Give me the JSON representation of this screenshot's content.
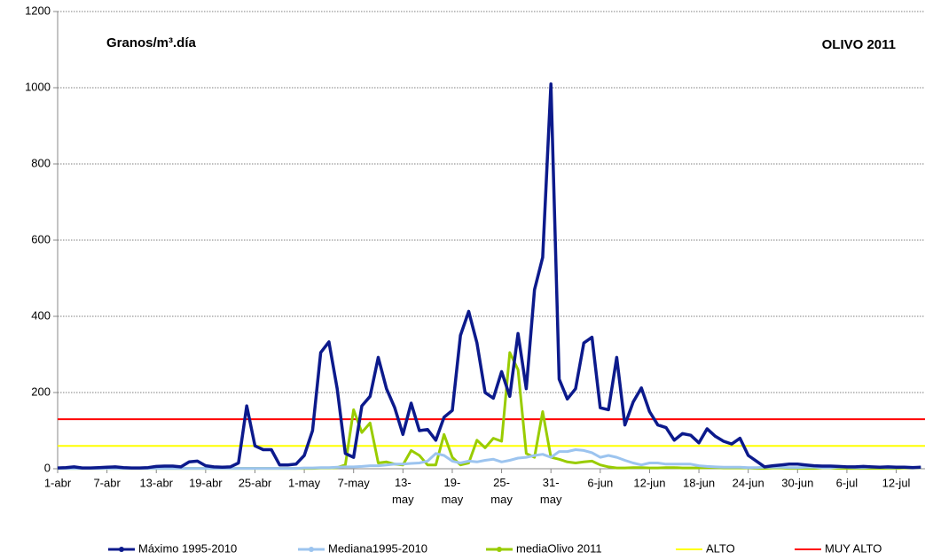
{
  "chart_data": {
    "type": "line",
    "annotations": [
      "Granos/m³.día",
      "OLIVO 2011"
    ],
    "categories": [
      "1-abr",
      null,
      null,
      null,
      null,
      null,
      "7-abr",
      null,
      null,
      null,
      null,
      null,
      "13-abr",
      null,
      null,
      null,
      null,
      null,
      "19-abr",
      null,
      null,
      null,
      null,
      null,
      "25-abr",
      null,
      null,
      null,
      null,
      null,
      "1-may",
      null,
      null,
      null,
      null,
      null,
      "7-may",
      null,
      null,
      null,
      null,
      null,
      "13-may",
      null,
      null,
      null,
      null,
      null,
      "19-may",
      null,
      null,
      null,
      null,
      null,
      "25-may",
      null,
      null,
      null,
      null,
      null,
      "31-may",
      null,
      null,
      null,
      null,
      null,
      "6-jun",
      null,
      null,
      null,
      null,
      null,
      "12-jun",
      null,
      null,
      null,
      null,
      null,
      "18-jun",
      null,
      null,
      null,
      null,
      null,
      "24-jun",
      null,
      null,
      null,
      null,
      null,
      "30-jun",
      null,
      null,
      null,
      null,
      null,
      "6-jul",
      null,
      null,
      null,
      null,
      null,
      "12-jul",
      null,
      null,
      null
    ],
    "series": [
      {
        "name": "Máximo 1995-2010",
        "color": "#0c1a8c",
        "values": [
          2,
          3,
          5,
          2,
          2,
          3,
          4,
          5,
          3,
          2,
          2,
          3,
          6,
          7,
          7,
          5,
          18,
          20,
          8,
          5,
          4,
          5,
          15,
          165,
          60,
          50,
          50,
          10,
          10,
          12,
          35,
          100,
          305,
          333,
          210,
          40,
          30,
          165,
          190,
          292,
          210,
          160,
          90,
          172,
          100,
          103,
          75,
          135,
          153,
          350,
          413,
          330,
          200,
          185,
          255,
          190,
          355,
          210,
          470,
          555,
          1010,
          235,
          183,
          210,
          330,
          345,
          160,
          155,
          292,
          115,
          175,
          212,
          150,
          115,
          108,
          75,
          92,
          88,
          68,
          105,
          85,
          72,
          65,
          80,
          35,
          20,
          5,
          8,
          10,
          12,
          12,
          10,
          8,
          7,
          7,
          6,
          5,
          5,
          6,
          5,
          4,
          5,
          4,
          4,
          3,
          4
        ]
      },
      {
        "name": "Mediana1995-2010",
        "color": "#9cc4ef",
        "values": [
          1,
          1,
          1,
          1,
          1,
          1,
          1,
          1,
          1,
          1,
          1,
          1,
          1,
          1,
          1,
          1,
          1,
          1,
          1,
          1,
          1,
          1,
          1,
          1,
          1,
          1,
          1,
          1,
          1,
          1,
          2,
          2,
          3,
          3,
          4,
          5,
          5,
          6,
          8,
          8,
          10,
          12,
          12,
          14,
          15,
          20,
          40,
          35,
          20,
          15,
          20,
          18,
          22,
          25,
          18,
          22,
          28,
          30,
          35,
          38,
          30,
          45,
          45,
          50,
          48,
          42,
          30,
          35,
          30,
          22,
          15,
          10,
          15,
          15,
          12,
          12,
          12,
          12,
          8,
          6,
          5,
          4,
          4,
          4,
          3,
          3,
          4,
          4,
          4,
          3,
          3,
          4,
          4,
          3,
          3,
          4,
          4,
          3,
          3,
          4,
          4,
          3,
          3,
          4,
          4,
          3
        ]
      },
      {
        "name": "mediaOlivo 2011",
        "color": "#99cc00",
        "values": [
          1,
          1,
          1,
          1,
          1,
          1,
          1,
          1,
          1,
          1,
          1,
          1,
          1,
          1,
          1,
          1,
          1,
          1,
          1,
          1,
          1,
          1,
          1,
          1,
          1,
          1,
          1,
          1,
          1,
          1,
          1,
          1,
          2,
          2,
          3,
          10,
          155,
          95,
          120,
          15,
          18,
          12,
          10,
          48,
          35,
          10,
          10,
          90,
          30,
          10,
          15,
          75,
          55,
          80,
          72,
          305,
          260,
          40,
          30,
          150,
          30,
          25,
          18,
          15,
          18,
          20,
          10,
          5,
          2,
          2,
          3,
          3,
          2,
          2,
          3,
          3,
          2,
          2,
          2,
          3,
          3,
          2,
          2,
          2,
          2,
          1,
          1,
          2,
          2,
          1,
          1,
          1,
          1,
          2,
          2,
          1,
          1,
          1,
          1,
          1,
          1,
          1,
          1,
          2,
          2,
          3
        ]
      }
    ],
    "reference_lines": [
      {
        "name": "ALTO",
        "color": "#ffff00",
        "value": 60
      },
      {
        "name": "MUY ALTO",
        "color": "#ff0000",
        "value": 130
      }
    ],
    "ylim": [
      0,
      1200
    ],
    "yticks": [
      0,
      200,
      400,
      600,
      800,
      1000,
      1200
    ],
    "grid": true
  }
}
